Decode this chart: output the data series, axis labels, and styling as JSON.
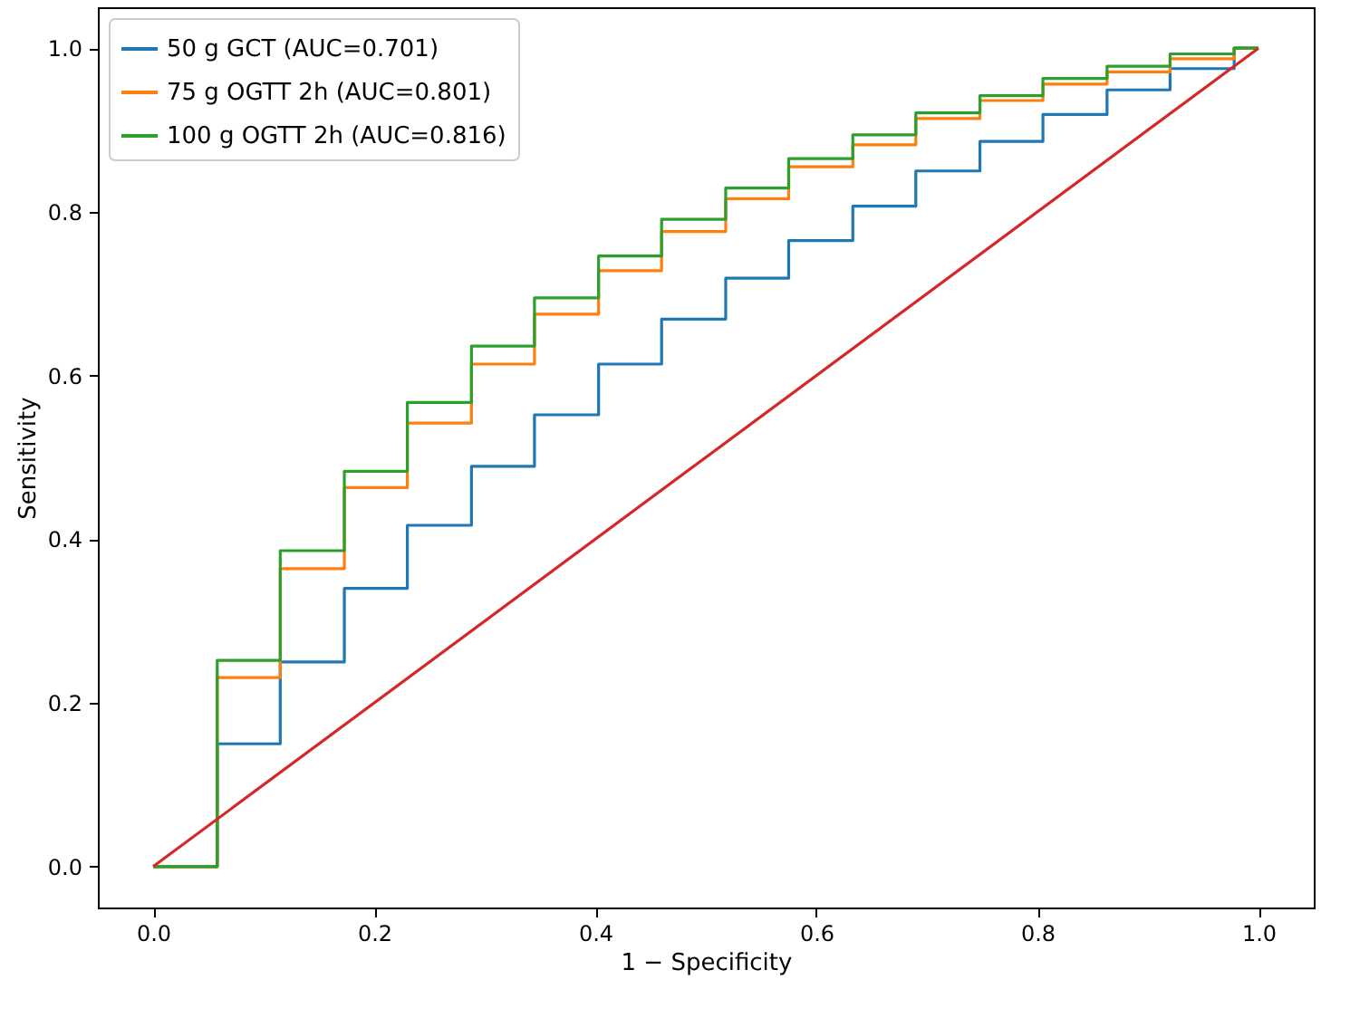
{
  "chart_data": {
    "type": "step",
    "xlabel": "1 − Specificity",
    "ylabel": "Sensitivity",
    "x": [
      0,
      0.058,
      0.115,
      0.173,
      0.23,
      0.288,
      0.345,
      0.403,
      0.46,
      0.518,
      0.575,
      0.633,
      0.69,
      0.748,
      0.805,
      0.863,
      0.92,
      0.978,
      1.0
    ],
    "series": [
      {
        "name": "50 g GCT (AUC=0.701)",
        "color": "#1f77b4",
        "values": [
          0,
          0.15,
          0.25,
          0.34,
          0.417,
          0.489,
          0.552,
          0.614,
          0.669,
          0.719,
          0.765,
          0.807,
          0.85,
          0.886,
          0.919,
          0.949,
          0.975,
          1.0,
          1.0
        ]
      },
      {
        "name": "75 g OGTT 2h (AUC=0.801)",
        "color": "#ff7f0e",
        "values": [
          0,
          0.231,
          0.364,
          0.463,
          0.542,
          0.614,
          0.675,
          0.728,
          0.776,
          0.816,
          0.855,
          0.882,
          0.914,
          0.936,
          0.956,
          0.971,
          0.987,
          1.0,
          1.0
        ]
      },
      {
        "name": "100 g OGTT 2h (AUC=0.816)",
        "color": "#2ca02c",
        "values": [
          0,
          0.252,
          0.386,
          0.483,
          0.567,
          0.636,
          0.695,
          0.746,
          0.791,
          0.829,
          0.865,
          0.894,
          0.921,
          0.942,
          0.963,
          0.978,
          0.993,
          1.0,
          1.0
        ]
      },
      {
        "type": "line",
        "color": "#d62728",
        "x": [
          0,
          1
        ],
        "values": [
          0,
          1
        ]
      }
    ],
    "xlim": [
      -0.05,
      1.05
    ],
    "ylim": [
      -0.05,
      1.05
    ],
    "xticks": [
      {
        "value": 0,
        "label": "0.0"
      },
      {
        "value": 0.2,
        "label": "0.2"
      },
      {
        "value": 0.4,
        "label": "0.4"
      },
      {
        "value": 0.6,
        "label": "0.6"
      },
      {
        "value": 0.8,
        "label": "0.8"
      },
      {
        "value": 1.0,
        "label": "1.0"
      }
    ],
    "yticks": [
      {
        "value": 0,
        "label": "0.0"
      },
      {
        "value": 0.2,
        "label": "0.2"
      },
      {
        "value": 0.4,
        "label": "0.4"
      },
      {
        "value": 0.6,
        "label": "0.6"
      },
      {
        "value": 0.8,
        "label": "0.8"
      },
      {
        "value": 1.0,
        "label": "1.0"
      }
    ],
    "grid": false,
    "legend": "top left"
  }
}
